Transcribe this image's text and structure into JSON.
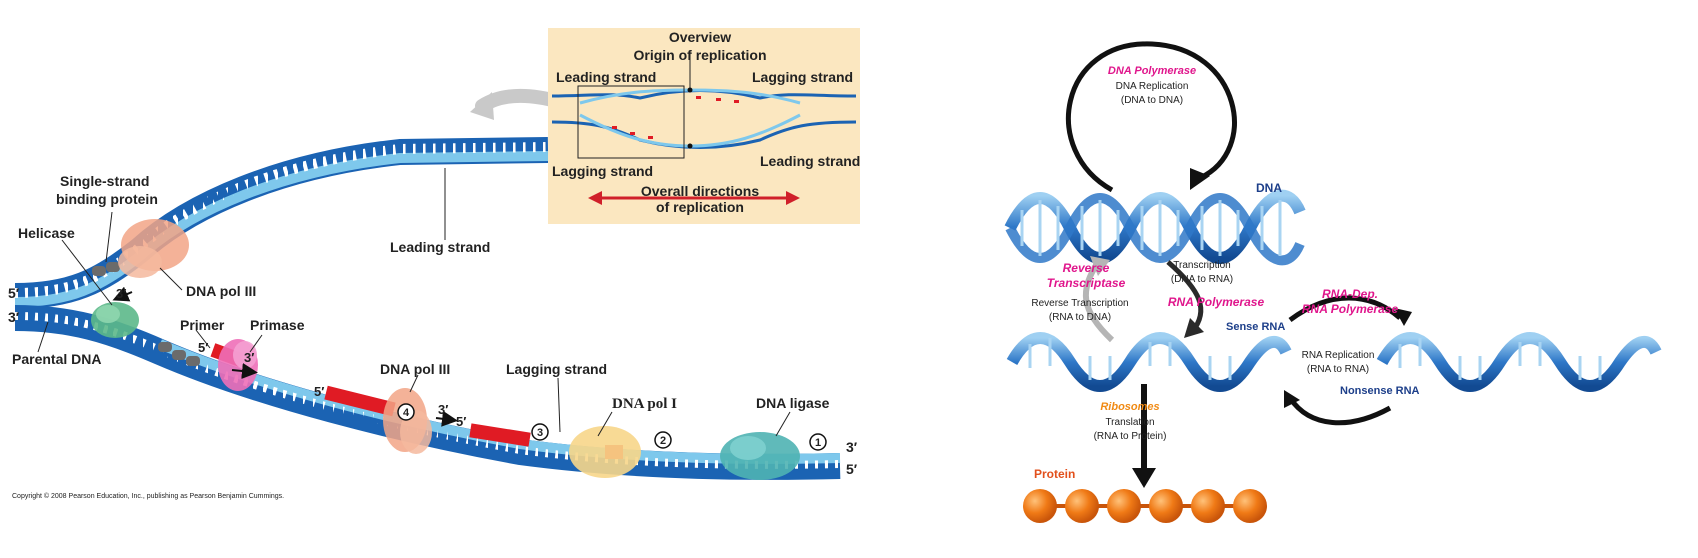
{
  "left": {
    "overview": {
      "title": "Overview",
      "origin": "Origin of replication",
      "leading_top": "Leading strand",
      "lagging_top": "Lagging strand",
      "lagging_bottom": "Lagging strand",
      "leading_bottom": "Leading strand",
      "directions_1": "Overall directions",
      "directions_2": "of replication"
    },
    "labels": {
      "ssb_1": "Single-strand",
      "ssb_2": "binding protein",
      "helicase": "Helicase",
      "leading_strand": "Leading strand",
      "dna_pol3_top": "DNA pol III",
      "parental_dna": "Parental DNA",
      "primer": "Primer",
      "primase": "Primase",
      "dna_pol3_mid": "DNA pol III",
      "lagging_strand": "Lagging strand",
      "dna_pol1": "DNA pol I",
      "dna_ligase": "DNA ligase",
      "five_prime_left": "5′",
      "three_prime_left": "3′",
      "three_prime_top": "3′",
      "five_prime_primer": "5′",
      "three_prime_primer": "3′",
      "five_prime_okazaki": "5′",
      "three_prime_okazaki": "3′",
      "five_prime_okazaki2": "5′",
      "three_prime_right": "3′",
      "five_prime_right": "5′",
      "step_1": "1",
      "step_2": "2",
      "step_3": "3",
      "step_4": "4",
      "copyright": "Copyright © 2008 Pearson Education, Inc., publishing as Pearson Benjamin Cummings."
    }
  },
  "right": {
    "dna_polymerase": "DNA Polymerase",
    "dna_replication": "DNA Replication",
    "dna_to_dna": "(DNA to DNA)",
    "dna": "DNA",
    "reverse_1": "Reverse",
    "reverse_2": "Transcriptase",
    "reverse_transcription": "Reverse Transcription",
    "rna_to_dna": "(RNA to DNA)",
    "transcription": "Transcription",
    "dna_to_rna": "(DNA to RNA)",
    "rna_polymerase": "RNA Polymerase",
    "rna_dep_1": "RNA-Dep.",
    "rna_dep_2": "RNA Polymerase",
    "sense_rna": "Sense RNA",
    "rna_replication": "RNA Replication",
    "rna_to_rna": "(RNA to RNA)",
    "nonsense_rna": "Nonsense RNA",
    "ribosomes": "Ribosomes",
    "translation": "Translation",
    "rna_to_protein": "(RNA to Protein)",
    "protein": "Protein"
  },
  "colors": {
    "strand_dark": "#1b63b3",
    "strand_light": "#7ec8ec",
    "overview_bg": "#fbe7c0",
    "rna_primer": "#e01b24",
    "direction_arrow": "#d0202a",
    "protein_bead": "#f07a16",
    "label_magenta": "#e0168c",
    "label_navy": "#1d3f8a"
  }
}
